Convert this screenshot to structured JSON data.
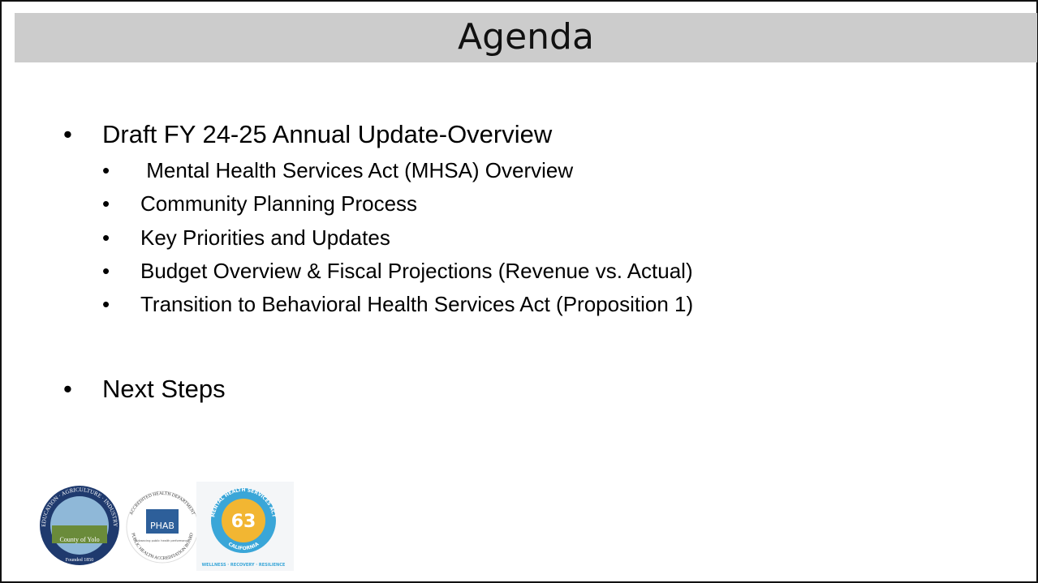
{
  "slide": {
    "title": "Agenda",
    "items": [
      {
        "text": "Draft FY 24-25 Annual Update-Overview",
        "subitems": [
          " Mental Health Services Act (MHSA) Overview",
          "Community Planning Process",
          "Key Priorities and Updates",
          "Budget Overview & Fiscal Projections (Revenue vs. Actual)",
          "Transition to Behavioral Health Services Act (Proposition 1)"
        ]
      },
      {
        "text": "Next Steps",
        "subitems": []
      }
    ],
    "logos": {
      "yolo": {
        "ring": "EDUCATION · AGRICULTURE · INDUSTRY",
        "name": "County of Yolo",
        "founded": "Founded 1850"
      },
      "phab": {
        "ring_top": "ACCREDITED HEALTH DEPARTMENT",
        "ring_bottom": "PUBLIC HEALTH ACCREDITATION BOARD",
        "mark": "PHAB",
        "tagline": "Advancing public health performance"
      },
      "mhsa": {
        "ring_top": "MENTAL HEALTH SERVICES ACT",
        "ring_bottom": "CALIFORNIA",
        "center": "63",
        "footer": "WELLNESS · RECOVERY · RESILIENCE"
      }
    }
  }
}
